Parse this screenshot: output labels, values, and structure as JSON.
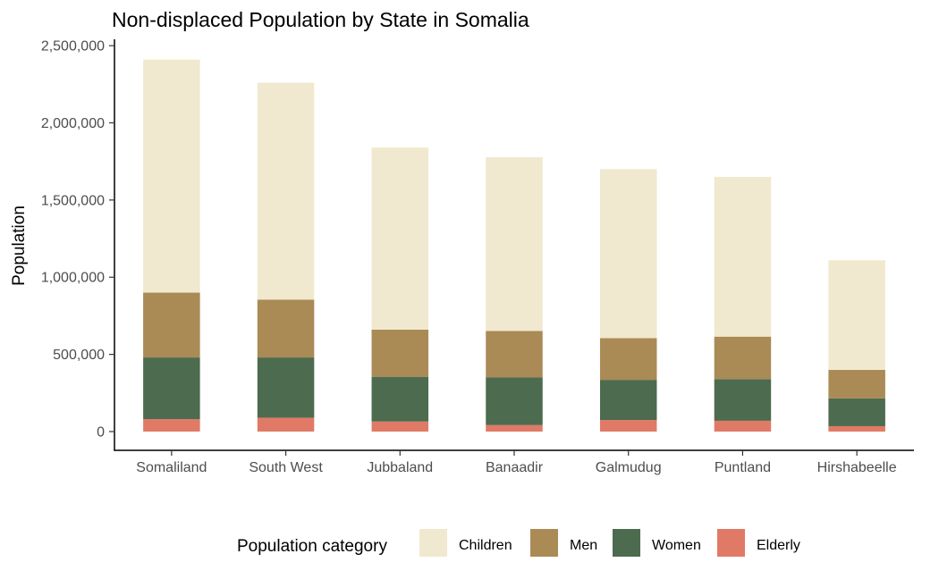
{
  "chart_data": {
    "type": "bar",
    "stacked": true,
    "title": "Non-displaced Population by State in Somalia",
    "xlabel": "",
    "ylabel": "Population",
    "ylim": [
      0,
      2500000
    ],
    "yticks": [
      0,
      500000,
      1000000,
      1500000,
      2000000,
      2500000
    ],
    "ytick_labels": [
      "0",
      "500,000",
      "1,000,000",
      "1,500,000",
      "2,000,000",
      "2,500,000"
    ],
    "grid": false,
    "categories": [
      "Somaliland",
      "South West",
      "Jubbaland",
      "Banaadir",
      "Galmudug",
      "Puntland",
      "Hirshabeelle"
    ],
    "series": [
      {
        "name": "Elderly",
        "color": "#E07A66",
        "values": [
          80000,
          90000,
          65000,
          42000,
          75000,
          70000,
          35000
        ]
      },
      {
        "name": "Women",
        "color": "#4D6B4E",
        "values": [
          400000,
          390000,
          290000,
          310000,
          260000,
          270000,
          180000
        ]
      },
      {
        "name": "Men",
        "color": "#AA8A55",
        "values": [
          420000,
          375000,
          305000,
          300000,
          270000,
          275000,
          185000
        ]
      },
      {
        "name": "Children",
        "color": "#F0E9CF",
        "values": [
          1510000,
          1405000,
          1180000,
          1125000,
          1095000,
          1035000,
          710000
        ]
      }
    ],
    "legend": {
      "title": "Population category",
      "position": "bottom",
      "order": [
        "Children",
        "Men",
        "Women",
        "Elderly"
      ]
    }
  }
}
